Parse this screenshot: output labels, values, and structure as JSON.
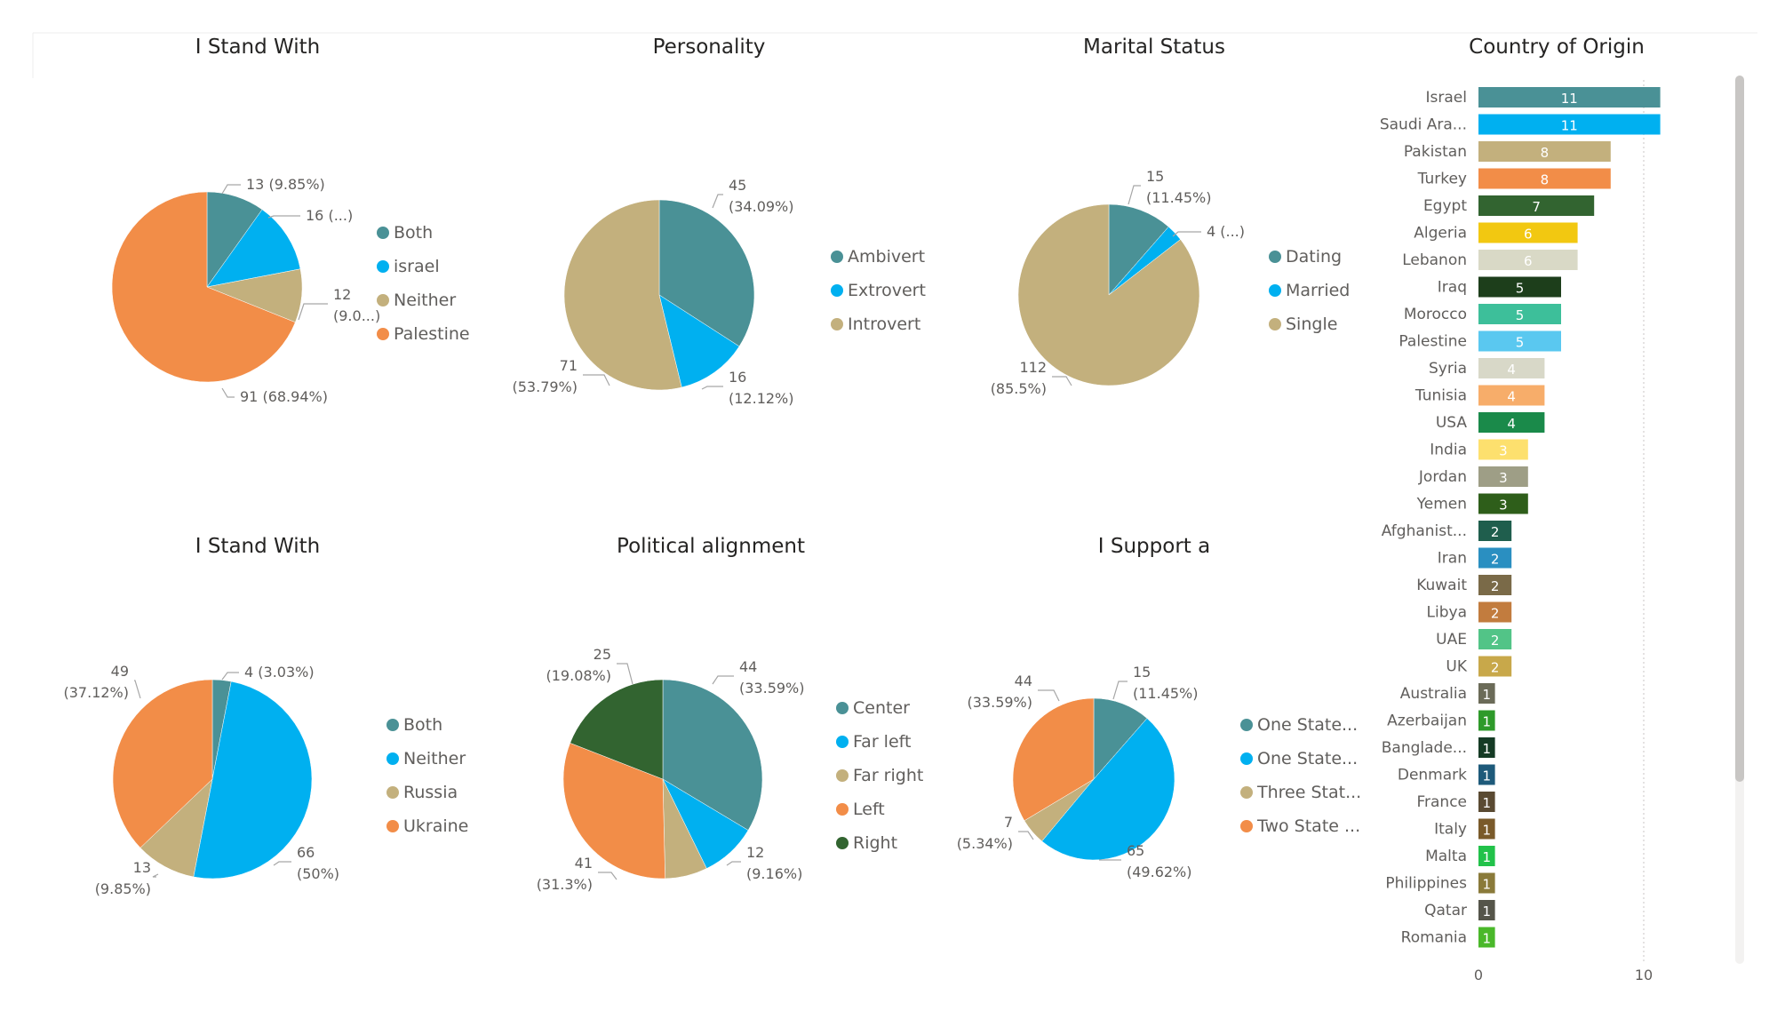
{
  "chart_data": [
    {
      "type": "pie",
      "title": "I Stand With",
      "categories": [
        "Both",
        "israel",
        "Neither",
        "Palestine"
      ],
      "values": [
        13,
        16,
        12,
        91
      ],
      "labels": [
        "13 (9.85%)",
        "16 (...)",
        "12\n(9.0...)",
        "91 (68.94%)"
      ],
      "colors": [
        "#4a9196",
        "#00b0f0",
        "#c3b07d",
        "#f28d48"
      ],
      "legend": "right"
    },
    {
      "type": "pie",
      "title": "Personality",
      "categories": [
        "Ambivert",
        "Extrovert",
        "Introvert"
      ],
      "values": [
        45,
        16,
        71
      ],
      "labels": [
        "45\n(34.09%)",
        "16\n(12.12%)",
        "71\n(53.79%)"
      ],
      "colors": [
        "#4a9196",
        "#00b0f0",
        "#c3b07d"
      ],
      "legend": "right"
    },
    {
      "type": "pie",
      "title": "Marital Status",
      "categories": [
        "Dating",
        "Married",
        "Single"
      ],
      "values": [
        15,
        4,
        112
      ],
      "labels": [
        "15\n(11.45%)",
        "4 (...)",
        "112\n(85.5%)"
      ],
      "colors": [
        "#4a9196",
        "#00b0f0",
        "#c3b07d"
      ],
      "legend": "right"
    },
    {
      "type": "pie",
      "title": "I Stand With",
      "categories": [
        "Both",
        "Neither",
        "Russia",
        "Ukraine"
      ],
      "values": [
        4,
        66,
        13,
        49
      ],
      "labels": [
        "4 (3.03%)",
        "66\n(50%)",
        "13\n(9.85%)",
        "49\n(37.12%)"
      ],
      "colors": [
        "#4a9196",
        "#00b0f0",
        "#c3b07d",
        "#f28d48"
      ],
      "legend": "right"
    },
    {
      "type": "pie",
      "title": "Political alignment",
      "categories": [
        "Center",
        "Far left",
        "Far right",
        "Left",
        "Right"
      ],
      "values": [
        44,
        12,
        9,
        41,
        25
      ],
      "labels": [
        "44\n(33.59%)",
        "12\n(9.16%)",
        "",
        "41\n(31.3%)",
        "25\n(19.08%)"
      ],
      "colors": [
        "#4a9196",
        "#00b0f0",
        "#c3b07d",
        "#f28d48",
        "#326430"
      ],
      "legend": "right"
    },
    {
      "type": "pie",
      "title": "I Support a",
      "categories": [
        "One State...",
        "One State...",
        "Three Stat...",
        "Two State ..."
      ],
      "values": [
        15,
        65,
        7,
        44
      ],
      "labels": [
        "15\n(11.45%)",
        "65\n(49.62%)",
        "7\n(5.34%)",
        "44\n(33.59%)"
      ],
      "colors": [
        "#4a9196",
        "#00b0f0",
        "#c3b07d",
        "#f28d48"
      ],
      "legend": "right"
    },
    {
      "type": "bar",
      "orientation": "horizontal",
      "title": "Country of Origin",
      "categories": [
        "Israel",
        "Saudi Ara...",
        "Pakistan",
        "Turkey",
        "Egypt",
        "Algeria",
        "Lebanon",
        "Iraq",
        "Morocco",
        "Palestine",
        "Syria",
        "Tunisia",
        "USA",
        "India",
        "Jordan",
        "Yemen",
        "Afghanist...",
        "Iran",
        "Kuwait",
        "Libya",
        "UAE",
        "UK",
        "Australia",
        "Azerbaijan",
        "Banglade...",
        "Denmark",
        "France",
        "Italy",
        "Malta",
        "Philippines",
        "Qatar",
        "Romania"
      ],
      "values": [
        11,
        11,
        8,
        8,
        7,
        6,
        6,
        5,
        5,
        5,
        4,
        4,
        4,
        3,
        3,
        3,
        2,
        2,
        2,
        2,
        2,
        2,
        1,
        1,
        1,
        1,
        1,
        1,
        1,
        1,
        1,
        1
      ],
      "colors": [
        "#4a9196",
        "#00b0f0",
        "#c3b07d",
        "#f28d48",
        "#326430",
        "#f2c811",
        "#d9d9c6",
        "#1d3e1b",
        "#3dbf9a",
        "#5ac8f0",
        "#d8d8c8",
        "#f7ad6a",
        "#1a8a4a",
        "#fde06e",
        "#9e9e86",
        "#2e5e1a",
        "#1f5e4d",
        "#2a8fc1",
        "#7a6a48",
        "#c27c3e",
        "#52c487",
        "#c8a84a",
        "#6b6b58",
        "#2e9a2a",
        "#153b25",
        "#1e5a7a",
        "#5a4a32",
        "#7a5a2a",
        "#22c24a",
        "#8a7a3a",
        "#55554a",
        "#4ab82a"
      ],
      "xlim": [
        0,
        11
      ],
      "xticks": [
        0,
        10
      ],
      "grid": true
    }
  ]
}
